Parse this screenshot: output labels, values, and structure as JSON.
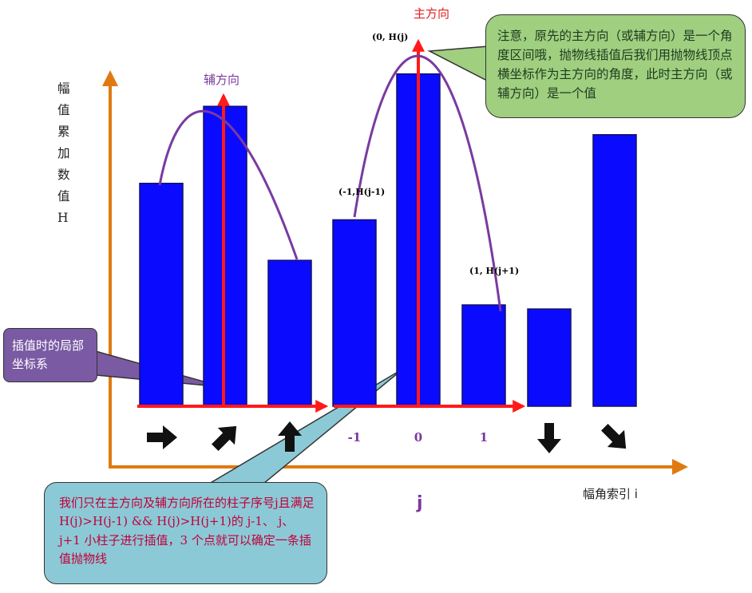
{
  "chart_data": {
    "type": "bar",
    "values": [
      5.5,
      7.4,
      3.6,
      4.6,
      8.2,
      2.5,
      2.4,
      6.7
    ],
    "ylim": [
      0,
      9
    ],
    "bar_color": "#0a0aff",
    "icons": [
      "arrow-right",
      "arrow-up-right",
      "arrow-up",
      "",
      "",
      "",
      "arrow-down",
      "arrow-down-right"
    ],
    "index_labels": [
      "",
      "",
      "",
      "-1",
      "0",
      "1",
      "",
      ""
    ],
    "points": [
      {
        "label": "(0, H(j)"
      },
      {
        "label": "(-1,H(j-1)"
      },
      {
        "label": "(1, H(j+1)"
      }
    ],
    "main_direction_label": "主方向",
    "aux_direction_label": "辅方向"
  },
  "y_axis_label": "幅 值\n累 加\n数 值\nH",
  "x_axis_label": "幅角索引 i",
  "j_label": "j",
  "notes": {
    "top_right": "注意，原先的主方向（或辅方向）是一个角度区间哦，抛物线插值后我们用抛物线顶点横坐标作为主方向的角度，此时主方向（或辅方向）是一个值",
    "left": "插值时的局部坐标系",
    "bottom": "我们只在主方向及辅方向所在的柱子序号j且满足H(j)>H(j-1) && H(j)>H(j+1)的 j-1、 j、 j+1 小柱子进行插值，3 个点就可以确定一条插值抛物线"
  },
  "colors": {
    "axis": "#e07a10",
    "local_axis": "#ff1a1a",
    "curve": "#7a3aa0",
    "direction_label": "#e02020",
    "aux_label": "#7a3aa0"
  }
}
